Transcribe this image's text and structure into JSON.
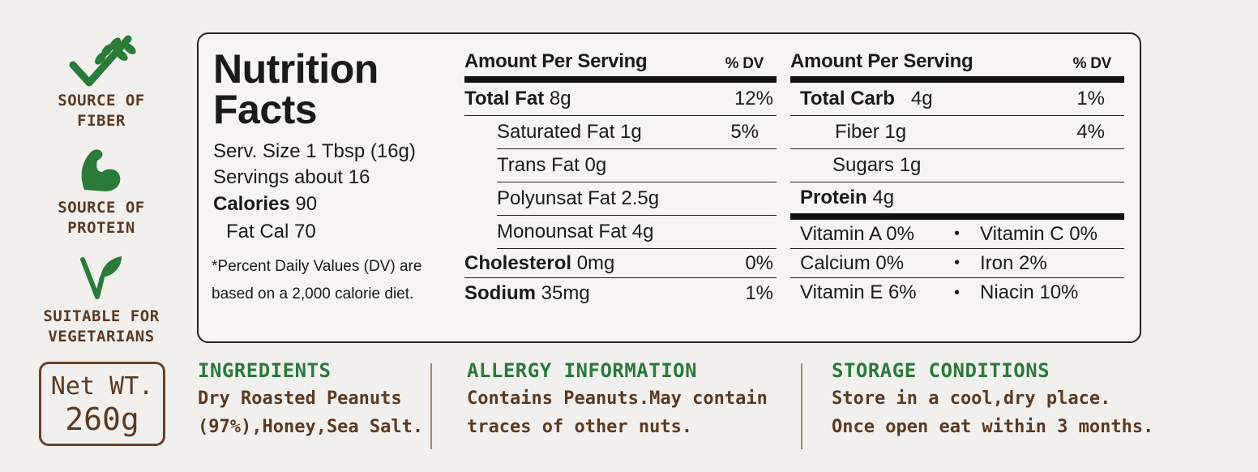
{
  "badges": [
    {
      "icon": "wheat-check-icon",
      "line1": "SOURCE OF",
      "line2": "FIBER",
      "color": "#2a7a3a"
    },
    {
      "icon": "flexed-arm-icon",
      "line1": "SOURCE OF",
      "line2": "PROTEIN",
      "color": "#2a7a3a"
    },
    {
      "icon": "leaf-v-icon",
      "line1": "SUITABLE FOR",
      "line2": "VEGETARIANS",
      "color": "#2a7a3a"
    }
  ],
  "net_weight": {
    "line1": "Net WT.",
    "line2": "260g"
  },
  "nutrition": {
    "title_line1": "Nutrition",
    "title_line2": "Facts",
    "serving_size": "Serv. Size 1 Tbsp (16g)",
    "servings": "Servings about 16",
    "calories_label": "Calories",
    "calories_value": "90",
    "fat_cal": "Fat Cal 70",
    "footnote": "*Percent Daily Values (DV) are based on a 2,000 calorie diet.",
    "header_amount": "Amount Per Serving",
    "header_dv": "% DV",
    "left": {
      "total_fat_label": "Total Fat",
      "total_fat_value": "8g",
      "total_fat_dv": "12%",
      "sat_fat": "Saturated Fat 1g",
      "sat_fat_dv": "5%",
      "trans_fat": "Trans Fat 0g",
      "poly_fat": "Polyunsat Fat 2.5g",
      "mono_fat": "Monounsat Fat 4g",
      "cholesterol_label": "Cholesterol",
      "cholesterol_value": "0mg",
      "cholesterol_dv": "0%",
      "sodium_label": "Sodium",
      "sodium_value": "35mg",
      "sodium_dv": "1%"
    },
    "right": {
      "total_carb_label": "Total Carb",
      "total_carb_value": "4g",
      "total_carb_dv": "1%",
      "fiber": "Fiber 1g",
      "fiber_dv": "4%",
      "sugars": "Sugars 1g",
      "protein_label": "Protein",
      "protein_value": "4g",
      "vitamins": [
        {
          "a": "Vitamin A 0%",
          "b": "Vitamin C 0%"
        },
        {
          "a": "Calcium 0%",
          "b": "Iron 2%"
        },
        {
          "a": "Vitamin E 6%",
          "b": "Niacin 10%"
        }
      ],
      "bullet": "•"
    }
  },
  "ingredients": {
    "heading": "INGREDIENTS",
    "line1": "Dry Roasted Peanuts",
    "line2": "(97%),Honey,Sea Salt."
  },
  "allergy": {
    "heading": "ALLERGY INFORMATION",
    "line1": "Contains Peanuts.May contain",
    "line2": "traces of other nuts."
  },
  "storage": {
    "heading": "STORAGE CONDITIONS",
    "line1": "Store in a cool,dry place.",
    "line2": "Once open eat within 3 months."
  },
  "colors": {
    "green": "#2a7a3a",
    "brown": "#5c3a22",
    "ink": "#1a1a1a",
    "background": "#f1f0ee"
  }
}
